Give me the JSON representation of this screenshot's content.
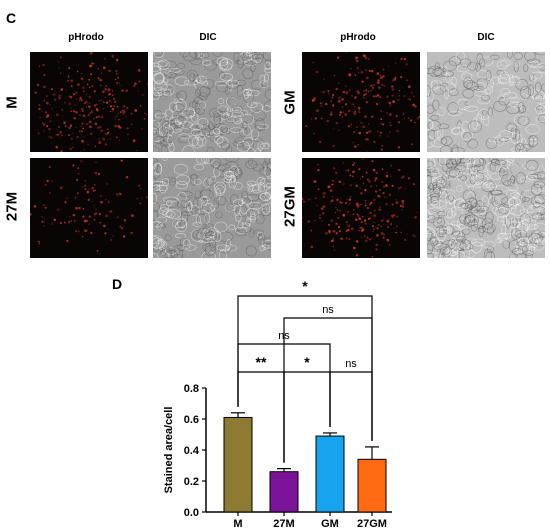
{
  "panel_c": {
    "letter": "C",
    "columns": [
      "pHrodo",
      "DIC",
      "pHrodo",
      "DIC"
    ],
    "rows_left": [
      "M",
      "27M"
    ],
    "rows_right": [
      "GM",
      "27GM"
    ]
  },
  "panel_d": {
    "letter": "D"
  },
  "colors": {
    "fluorescence_bg": "#0a0505",
    "fluorescence_dots": "#d23a2a",
    "dic_left": "#9a9a9a",
    "dic_right": "#bdbdbd"
  },
  "chart_data": {
    "type": "bar",
    "categories": [
      "M",
      "27M",
      "GM",
      "27GM"
    ],
    "values": [
      0.61,
      0.26,
      0.49,
      0.34
    ],
    "errors": [
      0.03,
      0.02,
      0.02,
      0.08
    ],
    "colors": [
      "#8d7b34",
      "#7a1397",
      "#18a3ee",
      "#ff6a13"
    ],
    "title": "",
    "xlabel": "",
    "ylabel": "Stained area/cell",
    "ylim": [
      0,
      0.8
    ],
    "yticks": [
      "0.0",
      "0.2",
      "0.4",
      "0.6",
      "0.8"
    ],
    "ytick_values": [
      0,
      0.2,
      0.4,
      0.6,
      0.8
    ],
    "significance": [
      {
        "from": 0,
        "to": 1,
        "label": "**",
        "level": 0
      },
      {
        "from": 1,
        "to": 2,
        "label": "*",
        "level": 0
      },
      {
        "from": 2,
        "to": 3,
        "label": "ns",
        "level": 0
      },
      {
        "from": 0,
        "to": 2,
        "label": "ns",
        "level": 1
      },
      {
        "from": 1,
        "to": 3,
        "label": "ns",
        "level": 2
      },
      {
        "from": 0,
        "to": 3,
        "label": "*",
        "level": 3
      }
    ]
  }
}
